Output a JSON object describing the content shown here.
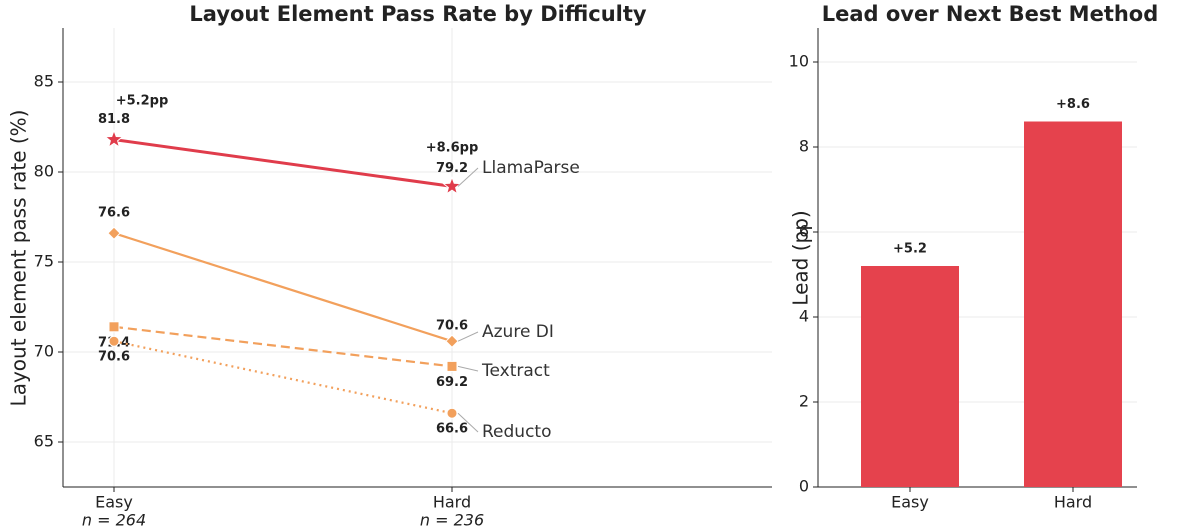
{
  "chart_data": [
    {
      "type": "line",
      "title": "Layout Element Pass Rate by Difficulty",
      "ylabel": "Layout element pass rate (%)",
      "categories": [
        "Easy",
        "Hard"
      ],
      "category_notes": [
        "n = 264",
        "n = 236"
      ],
      "series": [
        {
          "name": "LlamaParse",
          "color": "#e03c4b",
          "linestyle": "solid",
          "marker": "star",
          "values": [
            81.8,
            79.2
          ]
        },
        {
          "name": "Azure DI",
          "color": "#f2a05c",
          "linestyle": "solid",
          "marker": "diamond",
          "values": [
            76.6,
            70.6
          ]
        },
        {
          "name": "Textract",
          "color": "#f2a05c",
          "linestyle": "dashed",
          "marker": "square",
          "values": [
            71.4,
            69.2
          ]
        },
        {
          "name": "Reducto",
          "color": "#f2a05c",
          "linestyle": "dotted",
          "marker": "circle",
          "values": [
            70.6,
            66.6
          ]
        }
      ],
      "annotations": [
        "+5.2pp",
        "+8.6pp"
      ],
      "ylim": [
        62.5,
        88
      ],
      "yticks": [
        65,
        70,
        75,
        80,
        85
      ],
      "grid": true
    },
    {
      "type": "bar",
      "title": "Lead over Next Best Method",
      "ylabel": "Lead (pp)",
      "categories": [
        "Easy",
        "Hard"
      ],
      "values": [
        5.2,
        8.6
      ],
      "value_labels": [
        "+5.2",
        "+8.6"
      ],
      "color": "#e5424d",
      "ylim": [
        0,
        10.8
      ],
      "yticks": [
        0,
        2,
        4,
        6,
        8,
        10
      ],
      "grid": true
    }
  ]
}
